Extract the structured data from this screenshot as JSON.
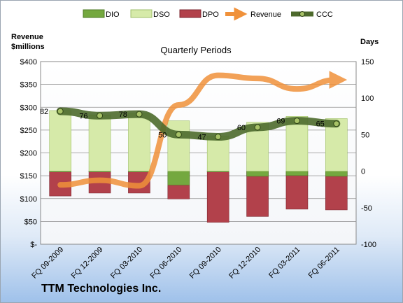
{
  "company": "TTM Technologies Inc.",
  "chart_data": {
    "type": "bar",
    "title": "Quarterly Periods",
    "categories": [
      "FQ 09-2009",
      "FQ 12-2009",
      "FQ 03-2010",
      "FQ 06-2010",
      "FQ 09-2010",
      "FQ 12-2010",
      "FQ 03-2011",
      "FQ 06-2011"
    ],
    "legend": {
      "placement": "top",
      "items": [
        "DIO",
        "DSO",
        "DPO",
        "Revenue",
        "CCC"
      ]
    },
    "left_axis": {
      "label": "Revenue\n$millions",
      "range": [
        0,
        400
      ],
      "tick_values": [
        0,
        50,
        100,
        150,
        200,
        250,
        300,
        350,
        400
      ],
      "tick_labels": [
        "$-",
        "$50",
        "$100",
        "$150",
        "$200",
        "$250",
        "$300",
        "$350",
        "$400"
      ]
    },
    "right_axis": {
      "label": "Days",
      "range": [
        -100,
        150
      ],
      "tick_values": [
        -100,
        -50,
        0,
        50,
        100,
        150
      ],
      "tick_labels": [
        "-100",
        "-50",
        "0",
        "50",
        "100",
        "150"
      ]
    },
    "grid": true,
    "series": [
      {
        "name": "DIO",
        "axis": "right",
        "kind": "stacked-bar",
        "color": "#74a83f",
        "values": [
          -1,
          -1,
          -1,
          -19,
          -1,
          -7,
          -6,
          -7
        ]
      },
      {
        "name": "DSO",
        "axis": "right",
        "kind": "stacked-bar",
        "color": "#d6eaa9",
        "values": [
          83,
          77,
          79,
          69,
          48,
          67,
          75,
          72
        ]
      },
      {
        "name": "DPO",
        "axis": "right",
        "kind": "bar-negative",
        "color": "#b2414b",
        "values": [
          -34,
          -30,
          -30,
          -38,
          -70,
          -62,
          -52,
          -53
        ]
      },
      {
        "name": "Revenue",
        "axis": "left",
        "kind": "line",
        "color": "#f0913a",
        "values": [
          130,
          140,
          128,
          305,
          370,
          363,
          340,
          360
        ]
      },
      {
        "name": "CCC",
        "axis": "right",
        "kind": "line",
        "color": "#4d6a2c",
        "values": [
          82,
          76,
          78,
          50,
          47,
          60,
          69,
          65
        ],
        "labels": [
          "82",
          "76",
          "78",
          "50",
          "47",
          "60",
          "69",
          "65"
        ]
      }
    ]
  }
}
